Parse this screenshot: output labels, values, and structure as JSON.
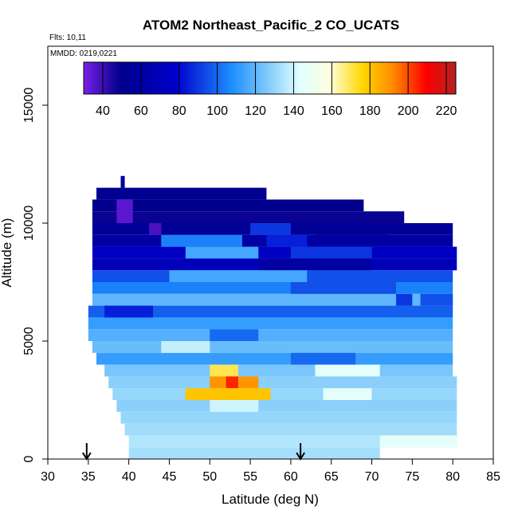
{
  "chart_data": {
    "type": "heatmap",
    "title": "ATOM2 Northeast_Pacific_2 CO_UCATS",
    "flights_label": "Flts: 10,11",
    "date_label": "MMDD: 0219,0221",
    "xlabel": "Latitude (deg N)",
    "ylabel": "Altitude (m)",
    "xlim": [
      30,
      85
    ],
    "ylim": [
      0,
      17500
    ],
    "x_ticks": [
      "30",
      "35",
      "40",
      "45",
      "50",
      "55",
      "60",
      "65",
      "70",
      "75",
      "80",
      "85"
    ],
    "y_ticks": [
      {
        "value": 0,
        "label": "0"
      },
      {
        "value": 5000,
        "label": "5000"
      },
      {
        "value": 10000,
        "label": "10000"
      },
      {
        "value": 15000,
        "label": "15000"
      }
    ],
    "colorbar": {
      "range": [
        30,
        225
      ],
      "ticks": [
        "40",
        "60",
        "80",
        "100",
        "120",
        "140",
        "160",
        "180",
        "200",
        "220"
      ],
      "tick_values": [
        40,
        60,
        80,
        100,
        120,
        140,
        160,
        180,
        200,
        220
      ],
      "colors": [
        "#7a1fe6",
        "#00008b",
        "#0000cd",
        "#1e90ff",
        "#87cefa",
        "#e0ffff",
        "#ffffe0",
        "#ffd700",
        "#ff8c00",
        "#ff0000",
        "#b22222"
      ]
    },
    "arrows_x": [
      34.8,
      61.2
    ],
    "bands": [
      {
        "y0": 11000,
        "y1": 11500,
        "x0": 36,
        "x1": 57,
        "value": 52
      },
      {
        "y0": 10500,
        "y1": 11000,
        "x0": 35.5,
        "x1": 69,
        "value": 50
      },
      {
        "y0": 10000,
        "y1": 10500,
        "x0": 35.5,
        "x1": 74,
        "value": 48
      },
      {
        "y0": 9500,
        "y1": 10000,
        "x0": 35.5,
        "x1": 80,
        "value": 55
      },
      {
        "y0": 9000,
        "y1": 9500,
        "x0": 35.5,
        "x1": 80,
        "value": 60
      },
      {
        "y0": 8500,
        "y1": 9000,
        "x0": 35.5,
        "x1": 80.5,
        "value": 75
      },
      {
        "y0": 8000,
        "y1": 8500,
        "x0": 35.5,
        "x1": 80.5,
        "value": 70
      },
      {
        "y0": 7500,
        "y1": 8000,
        "x0": 35.5,
        "x1": 80,
        "value": 95
      },
      {
        "y0": 7000,
        "y1": 7500,
        "x0": 35.5,
        "x1": 80,
        "value": 105
      },
      {
        "y0": 6500,
        "y1": 7000,
        "x0": 35.5,
        "x1": 80,
        "value": 120
      },
      {
        "y0": 6000,
        "y1": 6500,
        "x0": 35,
        "x1": 80,
        "value": 98
      },
      {
        "y0": 5500,
        "y1": 6000,
        "x0": 35,
        "x1": 80,
        "value": 112
      },
      {
        "y0": 5000,
        "y1": 5500,
        "x0": 35,
        "x1": 80,
        "value": 118
      },
      {
        "y0": 4500,
        "y1": 5000,
        "x0": 35.5,
        "x1": 80,
        "value": 122
      },
      {
        "y0": 4000,
        "y1": 4500,
        "x0": 36,
        "x1": 80,
        "value": 112
      },
      {
        "y0": 3500,
        "y1": 4000,
        "x0": 37,
        "x1": 80,
        "value": 125
      },
      {
        "y0": 3000,
        "y1": 3500,
        "x0": 37.5,
        "x1": 80.5,
        "value": 128
      },
      {
        "y0": 2500,
        "y1": 3000,
        "x0": 38,
        "x1": 80.5,
        "value": 130
      },
      {
        "y0": 2000,
        "y1": 2500,
        "x0": 38.5,
        "x1": 80.5,
        "value": 128
      },
      {
        "y0": 1500,
        "y1": 2000,
        "x0": 39,
        "x1": 80.5,
        "value": 130
      },
      {
        "y0": 1000,
        "y1": 1500,
        "x0": 39.5,
        "x1": 80.5,
        "value": 132
      },
      {
        "y0": 500,
        "y1": 1000,
        "x0": 40,
        "x1": 80.5,
        "value": 135
      },
      {
        "y0": 0,
        "y1": 500,
        "x0": 40,
        "x1": 71,
        "value": 133
      }
    ],
    "patches": [
      {
        "y0": 11500,
        "y1": 12000,
        "x0": 39,
        "x1": 39.5,
        "value": 60
      },
      {
        "y0": 10000,
        "y1": 11000,
        "x0": 38.5,
        "x1": 40.5,
        "value": 35
      },
      {
        "y0": 9500,
        "y1": 10000,
        "x0": 42.5,
        "x1": 44,
        "value": 38
      },
      {
        "y0": 9500,
        "y1": 10000,
        "x0": 55,
        "x1": 60,
        "value": 90
      },
      {
        "y0": 9500,
        "y1": 10000,
        "x0": 63,
        "x1": 72,
        "value": 55
      },
      {
        "y0": 9000,
        "y1": 9500,
        "x0": 44,
        "x1": 54,
        "value": 105
      },
      {
        "y0": 9000,
        "y1": 9500,
        "x0": 57,
        "x1": 62,
        "value": 85
      },
      {
        "y0": 8500,
        "y1": 9000,
        "x0": 47,
        "x1": 56,
        "value": 115
      },
      {
        "y0": 8500,
        "y1": 9000,
        "x0": 60,
        "x1": 70,
        "value": 90
      },
      {
        "y0": 8000,
        "y1": 8500,
        "x0": 56,
        "x1": 70,
        "value": 60
      },
      {
        "y0": 7500,
        "y1": 8000,
        "x0": 45,
        "x1": 62,
        "value": 115
      },
      {
        "y0": 7000,
        "y1": 7500,
        "x0": 60,
        "x1": 73,
        "value": 95
      },
      {
        "y0": 6000,
        "y1": 6500,
        "x0": 37,
        "x1": 43,
        "value": 85
      },
      {
        "y0": 6500,
        "y1": 7000,
        "x0": 73,
        "x1": 75,
        "value": 90
      },
      {
        "y0": 6500,
        "y1": 7000,
        "x0": 76,
        "x1": 80,
        "value": 95
      },
      {
        "y0": 5000,
        "y1": 5500,
        "x0": 50,
        "x1": 56,
        "value": 100
      },
      {
        "y0": 4500,
        "y1": 5000,
        "x0": 44,
        "x1": 50,
        "value": 138
      },
      {
        "y0": 4000,
        "y1": 4500,
        "x0": 60,
        "x1": 68,
        "value": 100
      },
      {
        "y0": 3500,
        "y1": 4000,
        "x0": 50,
        "x1": 53.5,
        "value": 170
      },
      {
        "y0": 3500,
        "y1": 4000,
        "x0": 63,
        "x1": 71,
        "value": 145
      },
      {
        "y0": 3000,
        "y1": 3500,
        "x0": 50,
        "x1": 56,
        "value": 190
      },
      {
        "y0": 3000,
        "y1": 3500,
        "x0": 52,
        "x1": 53.5,
        "value": 205
      },
      {
        "y0": 2500,
        "y1": 3000,
        "x0": 47,
        "x1": 57.5,
        "value": 180
      },
      {
        "y0": 2500,
        "y1": 3000,
        "x0": 64,
        "x1": 70,
        "value": 145
      },
      {
        "y0": 2000,
        "y1": 2500,
        "x0": 50,
        "x1": 56,
        "value": 140
      },
      {
        "y0": 500,
        "y1": 1000,
        "x0": 71,
        "x1": 80.5,
        "value": 145
      }
    ]
  }
}
